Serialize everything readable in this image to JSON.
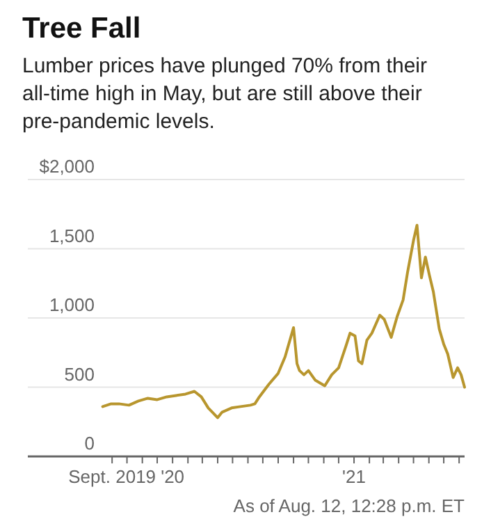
{
  "chart_data": {
    "type": "line",
    "title": "Tree Fall",
    "subtitle": "Lumber prices have plunged 70% from their all-time high in May, but are still above their pre-pandemic levels.",
    "annotations": [
      "As of Aug. 12, 12:28 p.m. ET"
    ],
    "x": [
      "2019-08-13",
      "2019-08-30",
      "2019-09-15",
      "2019-10-05",
      "2019-10-24",
      "2019-11-12",
      "2019-12-01",
      "2019-12-20",
      "2020-01-08",
      "2020-01-27",
      "2020-02-14",
      "2020-02-28",
      "2020-03-13",
      "2020-04-01",
      "2020-04-10",
      "2020-04-29",
      "2020-05-17",
      "2020-06-06",
      "2020-06-15",
      "2020-06-24",
      "2020-07-13",
      "2020-08-01",
      "2020-08-15",
      "2020-09-01",
      "2020-09-08",
      "2020-09-13",
      "2020-09-22",
      "2020-10-01",
      "2020-10-15",
      "2020-11-03",
      "2020-11-17",
      "2020-12-01",
      "2020-12-15",
      "2020-12-24",
      "2021-01-03",
      "2021-01-10",
      "2021-01-17",
      "2021-01-27",
      "2021-02-06",
      "2021-02-22",
      "2021-03-03",
      "2021-03-17",
      "2021-03-29",
      "2021-04-10",
      "2021-04-19",
      "2021-05-01",
      "2021-05-08",
      "2021-05-17",
      "2021-05-25",
      "2021-06-02",
      "2021-06-10",
      "2021-06-22",
      "2021-07-01",
      "2021-07-09",
      "2021-07-20",
      "2021-07-29",
      "2021-08-05",
      "2021-08-12"
    ],
    "series": [
      {
        "color": "#b8962e",
        "values": [
          360,
          380,
          380,
          370,
          400,
          420,
          410,
          430,
          440,
          450,
          470,
          430,
          350,
          280,
          320,
          350,
          360,
          370,
          380,
          430,
          520,
          600,
          720,
          930,
          670,
          620,
          590,
          620,
          550,
          510,
          590,
          640,
          790,
          890,
          870,
          690,
          670,
          840,
          890,
          1020,
          990,
          860,
          1010,
          1130,
          1330,
          1560,
          1670,
          1290,
          1440,
          1310,
          1190,
          920,
          810,
          740,
          570,
          640,
          590,
          500
        ]
      }
    ],
    "xlim": [
      "2019-03-15",
      "2021-08-12"
    ],
    "xticks": [
      {
        "value": "2019-09-01",
        "label": "Sept. 2019"
      },
      {
        "value": "2019-10-01",
        "label": null
      },
      {
        "value": "2019-11-01",
        "label": null
      },
      {
        "value": "2019-12-01",
        "label": null
      },
      {
        "value": "2020-01-01",
        "label": "'20"
      },
      {
        "value": "2020-02-01",
        "label": null
      },
      {
        "value": "2020-03-01",
        "label": null
      },
      {
        "value": "2020-04-01",
        "label": null
      },
      {
        "value": "2020-05-01",
        "label": null
      },
      {
        "value": "2020-06-01",
        "label": null
      },
      {
        "value": "2020-07-01",
        "label": null
      },
      {
        "value": "2020-08-01",
        "label": null
      },
      {
        "value": "2020-09-01",
        "label": null
      },
      {
        "value": "2020-10-01",
        "label": null
      },
      {
        "value": "2020-11-01",
        "label": null
      },
      {
        "value": "2020-12-01",
        "label": null
      },
      {
        "value": "2021-01-01",
        "label": "'21"
      },
      {
        "value": "2021-02-01",
        "label": null
      },
      {
        "value": "2021-03-01",
        "label": null
      },
      {
        "value": "2021-04-01",
        "label": null
      },
      {
        "value": "2021-05-01",
        "label": null
      },
      {
        "value": "2021-06-01",
        "label": null
      },
      {
        "value": "2021-07-01",
        "label": null
      },
      {
        "value": "2021-08-01",
        "label": null
      }
    ],
    "ylim": [
      0,
      2000
    ],
    "yticks": [
      0,
      500,
      {
        "value": 1000,
        "label": "1,000"
      },
      {
        "value": 1500,
        "label": "1,500"
      },
      {
        "value": 2000,
        "label": "$2,000"
      }
    ],
    "grid": "y",
    "line_style": "solid",
    "marker": "none"
  }
}
